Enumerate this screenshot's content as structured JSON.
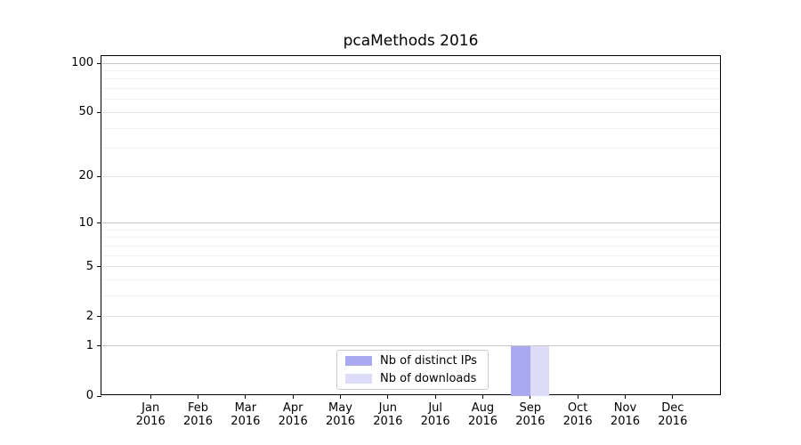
{
  "title": "pcaMethods 2016",
  "chart_data": {
    "type": "bar",
    "title": "pcaMethods 2016",
    "categories": [
      "Jan",
      "Feb",
      "Mar",
      "Apr",
      "May",
      "Jun",
      "Jul",
      "Aug",
      "Sep",
      "Oct",
      "Nov",
      "Dec"
    ],
    "xtick_year": "2016",
    "series": [
      {
        "name": "Nb of distinct IPs",
        "color": "#a9a9f1",
        "values": [
          0,
          0,
          0,
          0,
          0,
          0,
          0,
          0,
          1,
          0,
          0,
          0
        ]
      },
      {
        "name": "Nb of downloads",
        "color": "#dcdcf9",
        "values": [
          0,
          0,
          0,
          0,
          0,
          0,
          0,
          0,
          1,
          0,
          0,
          0
        ]
      }
    ],
    "yscale": "log1p",
    "ylim": [
      0,
      100
    ],
    "yticks": [
      0,
      1,
      2,
      5,
      10,
      20,
      50,
      100
    ],
    "gridlines_major": [
      1,
      10,
      100
    ],
    "gridlines_mid": [
      2,
      5,
      20,
      50
    ],
    "gridlines_minor": [
      3,
      4,
      6,
      7,
      8,
      9,
      30,
      40,
      60,
      70,
      80,
      90
    ],
    "grid": true,
    "legend_position": "inside-bottom-center",
    "colors": {
      "grid_major": "#c6c6c6",
      "grid_mid": "#e4e4e4",
      "grid_minor": "#f1f1f1",
      "axis": "#000000",
      "background": "#ffffff"
    }
  }
}
